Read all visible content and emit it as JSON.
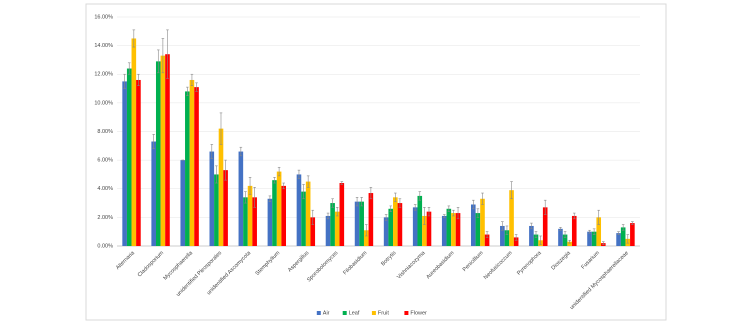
{
  "chart_data": {
    "type": "bar",
    "categories": [
      "Alternaria",
      "Cladosporium",
      "Mycosphaerella",
      "unidentified Pleosporales",
      "unidentified Ascomycota",
      "Stemphylium",
      "Aspergillus",
      "Sporobolomyces",
      "Filobasidium",
      "Botrytis",
      "Vishniacozyma",
      "Aureobasidium",
      "Penicillium",
      "Neofusicoccum",
      "Pyrenophora",
      "Dioszegia",
      "Fusarium",
      "unidentified Mycosphaerellaceae"
    ],
    "series": [
      {
        "name": "Air",
        "color": "#4472c4",
        "values": [
          11.5,
          7.3,
          6.0,
          6.6,
          6.6,
          3.3,
          5.0,
          2.1,
          3.1,
          2.0,
          2.7,
          2.1,
          2.9,
          1.4,
          1.4,
          1.2,
          1.0,
          0.9
        ],
        "errors": [
          0.5,
          0.5,
          0.0,
          0.5,
          0.3,
          0.2,
          0.3,
          0.2,
          0.3,
          0.2,
          0.2,
          0.1,
          0.3,
          0.3,
          0.2,
          0.1,
          0.1,
          0.1
        ]
      },
      {
        "name": "Leaf",
        "color": "#00b050",
        "values": [
          12.4,
          12.9,
          10.8,
          5.0,
          3.4,
          4.6,
          3.8,
          3.0,
          3.1,
          2.6,
          3.5,
          2.6,
          2.3,
          1.1,
          0.8,
          0.8,
          1.0,
          1.3
        ],
        "errors": [
          0.4,
          0.8,
          0.3,
          0.6,
          0.4,
          0.2,
          0.5,
          0.3,
          0.3,
          0.2,
          0.3,
          0.2,
          0.3,
          0.3,
          0.2,
          0.2,
          0.2,
          0.2
        ]
      },
      {
        "name": "Fruit",
        "color": "#ffc000",
        "values": [
          14.5,
          13.3,
          11.6,
          8.2,
          4.2,
          5.2,
          4.5,
          2.4,
          1.1,
          3.4,
          2.1,
          2.3,
          3.3,
          3.9,
          0.4,
          0.3,
          2.0,
          0.5
        ],
        "errors": [
          0.6,
          1.2,
          0.4,
          1.1,
          0.6,
          0.3,
          0.4,
          0.3,
          0.4,
          0.3,
          0.6,
          0.2,
          0.4,
          0.6,
          0.3,
          0.1,
          0.5,
          0.3
        ]
      },
      {
        "name": "Flower",
        "color": "#ff0000",
        "values": [
          11.6,
          13.4,
          11.1,
          5.3,
          3.4,
          4.2,
          2.0,
          4.4,
          3.7,
          3.0,
          2.4,
          2.3,
          0.8,
          0.6,
          2.7,
          2.1,
          0.2,
          1.6
        ],
        "errors": [
          0.4,
          1.7,
          0.3,
          0.7,
          0.7,
          0.2,
          0.5,
          0.1,
          0.4,
          0.3,
          0.3,
          0.4,
          0.2,
          0.2,
          0.5,
          0.2,
          0.1,
          0.1
        ]
      }
    ],
    "ylim": [
      0,
      16
    ],
    "yticks": [
      {
        "value": 0,
        "label": "0.00%"
      },
      {
        "value": 2,
        "label": "2.00%"
      },
      {
        "value": 4,
        "label": "4.00%"
      },
      {
        "value": 6,
        "label": "6.00%"
      },
      {
        "value": 8,
        "label": "8.00%"
      },
      {
        "value": 10,
        "label": "10.00%"
      },
      {
        "value": 12,
        "label": "12.00%"
      },
      {
        "value": 14,
        "label": "14.00%"
      },
      {
        "value": 16,
        "label": "16.00%"
      }
    ],
    "grid": true,
    "legend": "bottom"
  }
}
